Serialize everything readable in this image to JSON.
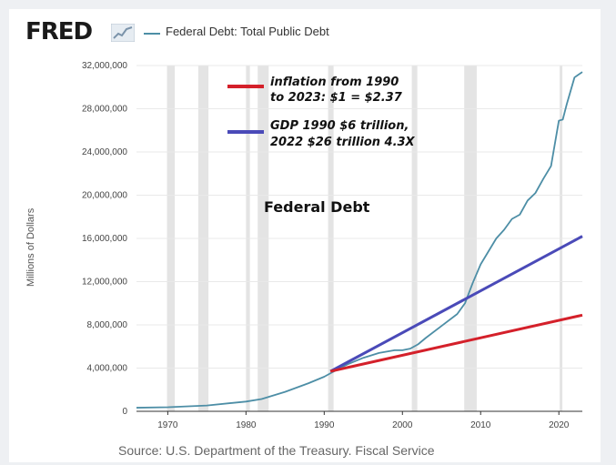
{
  "header": {
    "logo": "FRED",
    "logo_icon": "line-graph-icon",
    "legend_label": "Federal Debt: Total Public Debt",
    "series_color": "#4d8ea6"
  },
  "footer": {
    "source": "Source: U.S. Department of the Treasury. Fiscal Service"
  },
  "chart_data": {
    "type": "line",
    "ylabel": "Millions of Dollars",
    "xlim": [
      1966,
      2023
    ],
    "ylim": [
      0,
      32000000
    ],
    "x_ticks": [
      "1970",
      "1980",
      "1990",
      "2000",
      "2010",
      "2020"
    ],
    "x_tick_values": [
      1970,
      1980,
      1990,
      2000,
      2010,
      2020
    ],
    "y_ticks": [
      "0",
      "4,000,000",
      "8,000,000",
      "12,000,000",
      "16,000,000",
      "20,000,000",
      "24,000,000",
      "28,000,000",
      "32,000,000"
    ],
    "y_tick_values": [
      0,
      4000000,
      8000000,
      12000000,
      16000000,
      20000000,
      24000000,
      28000000,
      32000000
    ],
    "recessions": [
      [
        1969.9,
        1970.9
      ],
      [
        1973.9,
        1975.2
      ],
      [
        1980.0,
        1980.5
      ],
      [
        1981.5,
        1982.9
      ],
      [
        1990.5,
        1991.2
      ],
      [
        2001.2,
        2001.9
      ],
      [
        2007.9,
        2009.5
      ],
      [
        2020.1,
        2020.4
      ]
    ],
    "series": [
      {
        "name": "Federal Debt: Total Public Debt",
        "color": "#4d8ea6",
        "x": [
          1966,
          1970,
          1975,
          1980,
          1982,
          1985,
          1988,
          1990,
          1991,
          1993,
          1995,
          1997,
          1999,
          2000,
          2001,
          2002,
          2003,
          2005,
          2007,
          2008,
          2009,
          2010,
          2011,
          2012,
          2013,
          2014,
          2015,
          2016,
          2017,
          2018,
          2019,
          2020,
          2020.5,
          2021,
          2022,
          2023
        ],
        "y": [
          330000,
          380000,
          540000,
          900000,
          1140000,
          1800000,
          2600000,
          3200000,
          3600000,
          4350000,
          4950000,
          5400000,
          5650000,
          5650000,
          5800000,
          6200000,
          6800000,
          7900000,
          9000000,
          10000000,
          11900000,
          13600000,
          14800000,
          16000000,
          16800000,
          17800000,
          18200000,
          19500000,
          20200000,
          21500000,
          22700000,
          26900000,
          27000000,
          28400000,
          30900000,
          31400000
        ]
      },
      {
        "name": "",
        "color": "#4a4ab8",
        "x": [
          1990.8,
          2023
        ],
        "y": [
          3700000,
          16200000
        ]
      },
      {
        "name": "",
        "color": "#d4202a",
        "x": [
          1990.8,
          2023
        ],
        "y": [
          3700000,
          8900000
        ]
      }
    ],
    "annotations": {
      "title": "Federal Debt",
      "inflation_line1": "inflation from 1990",
      "inflation_line2": "to 2023: $1 = $2.37",
      "gdp_line1": "GDP 1990 $6 trillion,",
      "gdp_line2": "2022 $26 trillion 4.3X",
      "inflation_color": "#d4202a",
      "gdp_color": "#4a4ab8"
    }
  }
}
